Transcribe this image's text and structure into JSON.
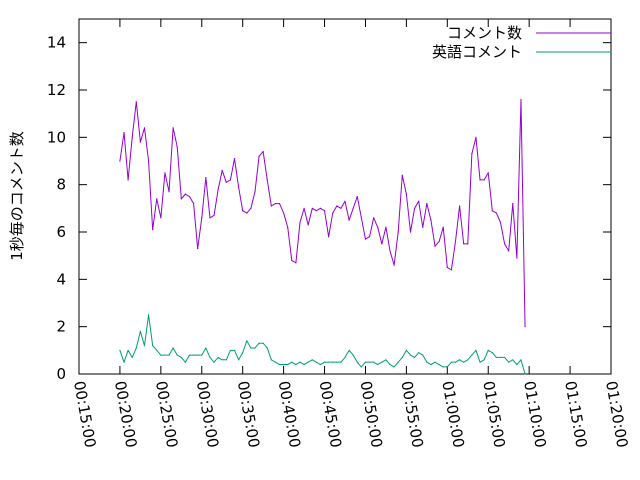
{
  "chart_data": {
    "type": "line",
    "title": "",
    "xlabel": "",
    "ylabel": "1秒毎のコメント数",
    "ylim": [
      0,
      15
    ],
    "yticks": [
      0,
      2,
      4,
      6,
      8,
      10,
      12,
      14
    ],
    "xlim": [
      "00:15:00",
      "01:20:00"
    ],
    "xticks": [
      "00:15:00",
      "00:20:00",
      "00:25:00",
      "00:30:00",
      "00:35:00",
      "00:40:00",
      "00:45:00",
      "00:50:00",
      "00:55:00",
      "01:00:00",
      "01:05:00",
      "01:10:00",
      "01:15:00",
      "01:20:00"
    ],
    "grid": false,
    "legend_position": "top-right",
    "series": [
      {
        "name": "コメント数",
        "color": "#9400d3",
        "points": [
          [
            "00:20:00",
            9.0
          ],
          [
            "00:20:30",
            10.2
          ],
          [
            "00:21:00",
            8.2
          ],
          [
            "00:21:30",
            10.0
          ],
          [
            "00:22:00",
            11.5
          ],
          [
            "00:22:30",
            9.8
          ],
          [
            "00:23:00",
            10.4
          ],
          [
            "00:23:30",
            9.0
          ],
          [
            "00:24:00",
            6.1
          ],
          [
            "00:24:30",
            7.4
          ],
          [
            "00:25:00",
            6.6
          ],
          [
            "00:25:30",
            8.5
          ],
          [
            "00:26:00",
            7.7
          ],
          [
            "00:26:30",
            10.4
          ],
          [
            "00:27:00",
            9.6
          ],
          [
            "00:27:30",
            7.4
          ],
          [
            "00:28:00",
            7.6
          ],
          [
            "00:28:30",
            7.5
          ],
          [
            "00:29:00",
            7.2
          ],
          [
            "00:29:30",
            5.3
          ],
          [
            "00:30:00",
            6.6
          ],
          [
            "00:30:30",
            8.3
          ],
          [
            "00:31:00",
            6.6
          ],
          [
            "00:31:30",
            6.7
          ],
          [
            "00:32:00",
            7.8
          ],
          [
            "00:32:30",
            8.6
          ],
          [
            "00:33:00",
            8.1
          ],
          [
            "00:33:30",
            8.2
          ],
          [
            "00:34:00",
            9.1
          ],
          [
            "00:34:30",
            7.9
          ],
          [
            "00:35:00",
            6.9
          ],
          [
            "00:35:30",
            6.8
          ],
          [
            "00:36:00",
            7.0
          ],
          [
            "00:36:30",
            7.7
          ],
          [
            "00:37:00",
            9.2
          ],
          [
            "00:37:30",
            9.4
          ],
          [
            "00:38:00",
            8.2
          ],
          [
            "00:38:30",
            7.1
          ],
          [
            "00:39:00",
            7.2
          ],
          [
            "00:39:30",
            7.2
          ],
          [
            "00:40:00",
            6.8
          ],
          [
            "00:40:30",
            6.2
          ],
          [
            "00:41:00",
            4.8
          ],
          [
            "00:41:30",
            4.7
          ],
          [
            "00:42:00",
            6.4
          ],
          [
            "00:42:30",
            7.0
          ],
          [
            "00:43:00",
            6.3
          ],
          [
            "00:43:30",
            7.0
          ],
          [
            "00:44:00",
            6.9
          ],
          [
            "00:44:30",
            7.0
          ],
          [
            "00:45:00",
            6.9
          ],
          [
            "00:45:30",
            5.8
          ],
          [
            "00:46:00",
            6.8
          ],
          [
            "00:46:30",
            7.1
          ],
          [
            "00:47:00",
            7.0
          ],
          [
            "00:47:30",
            7.3
          ],
          [
            "00:48:00",
            6.5
          ],
          [
            "00:48:30",
            7.0
          ],
          [
            "00:49:00",
            7.5
          ],
          [
            "00:49:30",
            6.6
          ],
          [
            "00:50:00",
            5.7
          ],
          [
            "00:50:30",
            5.8
          ],
          [
            "00:51:00",
            6.6
          ],
          [
            "00:51:30",
            6.2
          ],
          [
            "00:52:00",
            5.5
          ],
          [
            "00:52:30",
            6.2
          ],
          [
            "00:53:00",
            5.2
          ],
          [
            "00:53:30",
            4.6
          ],
          [
            "00:54:00",
            6.0
          ],
          [
            "00:54:30",
            8.4
          ],
          [
            "00:55:00",
            7.6
          ],
          [
            "00:55:30",
            6.0
          ],
          [
            "00:56:00",
            7.0
          ],
          [
            "00:56:30",
            7.3
          ],
          [
            "00:57:00",
            6.2
          ],
          [
            "00:57:30",
            7.2
          ],
          [
            "00:58:00",
            6.5
          ],
          [
            "00:58:30",
            5.4
          ],
          [
            "00:59:00",
            5.6
          ],
          [
            "00:59:30",
            6.2
          ],
          [
            "01:00:00",
            4.5
          ],
          [
            "01:00:30",
            4.4
          ],
          [
            "01:01:00",
            5.6
          ],
          [
            "01:01:30",
            7.1
          ],
          [
            "01:02:00",
            5.5
          ],
          [
            "01:02:30",
            5.5
          ],
          [
            "01:03:00",
            9.3
          ],
          [
            "01:03:30",
            10.0
          ],
          [
            "01:04:00",
            8.2
          ],
          [
            "01:04:30",
            8.2
          ],
          [
            "01:05:00",
            8.5
          ],
          [
            "01:05:30",
            6.9
          ],
          [
            "01:06:00",
            6.8
          ],
          [
            "01:06:30",
            6.4
          ],
          [
            "01:07:00",
            5.5
          ],
          [
            "01:07:30",
            5.2
          ],
          [
            "01:08:00",
            7.2
          ],
          [
            "01:08:30",
            4.9
          ],
          [
            "01:09:00",
            11.6
          ],
          [
            "01:09:30",
            2.0
          ]
        ]
      },
      {
        "name": "英語コメント",
        "color": "#009e73",
        "points": [
          [
            "00:20:00",
            1.0
          ],
          [
            "00:20:30",
            0.5
          ],
          [
            "00:21:00",
            1.0
          ],
          [
            "00:21:30",
            0.7
          ],
          [
            "00:22:00",
            1.1
          ],
          [
            "00:22:30",
            1.8
          ],
          [
            "00:23:00",
            1.2
          ],
          [
            "00:23:30",
            2.5
          ],
          [
            "00:24:00",
            1.2
          ],
          [
            "00:24:30",
            1.0
          ],
          [
            "00:25:00",
            0.8
          ],
          [
            "00:25:30",
            0.8
          ],
          [
            "00:26:00",
            0.8
          ],
          [
            "00:26:30",
            1.1
          ],
          [
            "00:27:00",
            0.8
          ],
          [
            "00:27:30",
            0.7
          ],
          [
            "00:28:00",
            0.5
          ],
          [
            "00:28:30",
            0.8
          ],
          [
            "00:29:00",
            0.8
          ],
          [
            "00:29:30",
            0.8
          ],
          [
            "00:30:00",
            0.8
          ],
          [
            "00:30:30",
            1.1
          ],
          [
            "00:31:00",
            0.7
          ],
          [
            "00:31:30",
            0.5
          ],
          [
            "00:32:00",
            0.7
          ],
          [
            "00:32:30",
            0.6
          ],
          [
            "00:33:00",
            0.6
          ],
          [
            "00:33:30",
            1.0
          ],
          [
            "00:34:00",
            1.0
          ],
          [
            "00:34:30",
            0.6
          ],
          [
            "00:35:00",
            0.9
          ],
          [
            "00:35:30",
            1.4
          ],
          [
            "00:36:00",
            1.1
          ],
          [
            "00:36:30",
            1.1
          ],
          [
            "00:37:00",
            1.3
          ],
          [
            "00:37:30",
            1.3
          ],
          [
            "00:38:00",
            1.1
          ],
          [
            "00:38:30",
            0.6
          ],
          [
            "00:39:00",
            0.5
          ],
          [
            "00:39:30",
            0.4
          ],
          [
            "00:40:00",
            0.4
          ],
          [
            "00:40:30",
            0.4
          ],
          [
            "00:41:00",
            0.5
          ],
          [
            "00:41:30",
            0.4
          ],
          [
            "00:42:00",
            0.5
          ],
          [
            "00:42:30",
            0.4
          ],
          [
            "00:43:00",
            0.5
          ],
          [
            "00:43:30",
            0.6
          ],
          [
            "00:44:00",
            0.5
          ],
          [
            "00:44:30",
            0.4
          ],
          [
            "00:45:00",
            0.5
          ],
          [
            "00:45:30",
            0.5
          ],
          [
            "00:46:00",
            0.5
          ],
          [
            "00:46:30",
            0.5
          ],
          [
            "00:47:00",
            0.5
          ],
          [
            "00:47:30",
            0.7
          ],
          [
            "00:48:00",
            1.0
          ],
          [
            "00:48:30",
            0.8
          ],
          [
            "00:49:00",
            0.5
          ],
          [
            "00:49:30",
            0.3
          ],
          [
            "00:50:00",
            0.5
          ],
          [
            "00:50:30",
            0.5
          ],
          [
            "00:51:00",
            0.5
          ],
          [
            "00:51:30",
            0.4
          ],
          [
            "00:52:00",
            0.5
          ],
          [
            "00:52:30",
            0.6
          ],
          [
            "00:53:00",
            0.4
          ],
          [
            "00:53:30",
            0.3
          ],
          [
            "00:54:00",
            0.5
          ],
          [
            "00:54:30",
            0.7
          ],
          [
            "00:55:00",
            1.0
          ],
          [
            "00:55:30",
            0.8
          ],
          [
            "00:56:00",
            0.7
          ],
          [
            "00:56:30",
            0.9
          ],
          [
            "00:57:00",
            0.8
          ],
          [
            "00:57:30",
            0.5
          ],
          [
            "00:58:00",
            0.4
          ],
          [
            "00:58:30",
            0.5
          ],
          [
            "00:59:00",
            0.4
          ],
          [
            "00:59:30",
            0.3
          ],
          [
            "01:00:00",
            0.3
          ],
          [
            "01:00:30",
            0.5
          ],
          [
            "01:01:00",
            0.5
          ],
          [
            "01:01:30",
            0.6
          ],
          [
            "01:02:00",
            0.5
          ],
          [
            "01:02:30",
            0.6
          ],
          [
            "01:03:00",
            0.8
          ],
          [
            "01:03:30",
            1.0
          ],
          [
            "01:04:00",
            0.5
          ],
          [
            "01:04:30",
            0.6
          ],
          [
            "01:05:00",
            1.0
          ],
          [
            "01:05:30",
            0.9
          ],
          [
            "01:06:00",
            0.7
          ],
          [
            "01:06:30",
            0.7
          ],
          [
            "01:07:00",
            0.7
          ],
          [
            "01:07:30",
            0.5
          ],
          [
            "01:08:00",
            0.6
          ],
          [
            "01:08:30",
            0.4
          ],
          [
            "01:09:00",
            0.6
          ],
          [
            "01:09:30",
            0.0
          ]
        ]
      }
    ]
  }
}
